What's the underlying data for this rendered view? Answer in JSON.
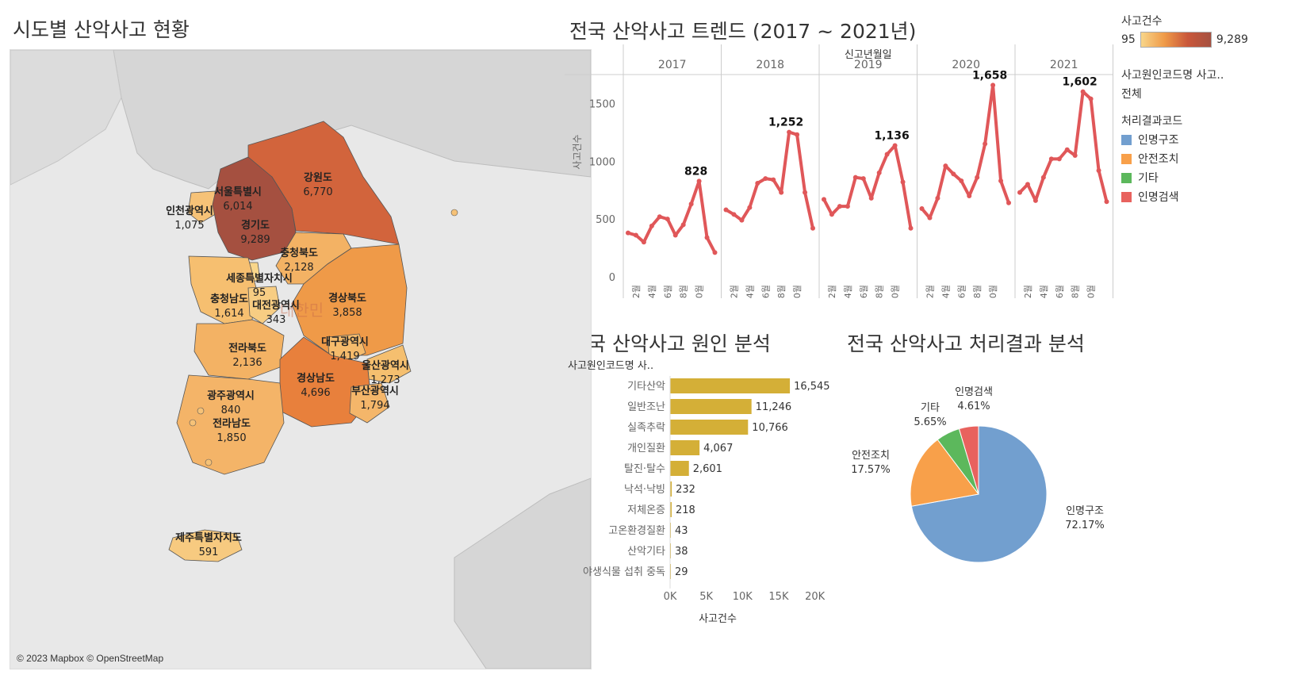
{
  "titles": {
    "map": "시도별 산악사고 현황",
    "trend": "전국 산악사고 트렌드 (2017 ~ 2021년)",
    "cause": "전국 산악사고 원인 분석",
    "result": "전국 산악사고 처리결과 분석"
  },
  "map": {
    "credit": "© 2023 Mapbox © OpenStreetMap",
    "watermark": "대한민",
    "regions": [
      {
        "name": "강원도",
        "value": "6,770",
        "color": "#d2643c"
      },
      {
        "name": "서울특별시",
        "value": "6,014",
        "color": "#b9593f"
      },
      {
        "name": "인천광역시",
        "value": "1,075",
        "color": "#f6c277"
      },
      {
        "name": "경기도",
        "value": "9,289",
        "color": "#a55040"
      },
      {
        "name": "충청북도",
        "value": "2,128",
        "color": "#f3b264"
      },
      {
        "name": "세종특별자치시",
        "value": "95",
        "color": "#f8d68a"
      },
      {
        "name": "충청남도",
        "value": "1,614",
        "color": "#f6bf70"
      },
      {
        "name": "대전광역시",
        "value": "343",
        "color": "#f7cd83"
      },
      {
        "name": "경상북도",
        "value": "3,858",
        "color": "#ef9a48"
      },
      {
        "name": "전라북도",
        "value": "2,136",
        "color": "#f3b264"
      },
      {
        "name": "대구광역시",
        "value": "1,419",
        "color": "#f5bb6c"
      },
      {
        "name": "울산광역시",
        "value": "1,273",
        "color": "#f5bf6f"
      },
      {
        "name": "경상남도",
        "value": "4,696",
        "color": "#e8803c"
      },
      {
        "name": "부산광역시",
        "value": "1,794",
        "color": "#f4b66a"
      },
      {
        "name": "광주광역시",
        "value": "840",
        "color": "#f6c77c"
      },
      {
        "name": "전라남도",
        "value": "1,850",
        "color": "#f4b468"
      },
      {
        "name": "제주특별자치도",
        "value": "591",
        "color": "#f7ca80"
      }
    ]
  },
  "legend": {
    "count_title": "사고건수",
    "count_min": "95",
    "count_max": "9,289",
    "cause_title": "사고원인코드명 사고..",
    "cause_value": "전체",
    "result_title": "처리결과코드",
    "result_items": [
      {
        "label": "인명구조",
        "color": "#729fcf"
      },
      {
        "label": "안전조치",
        "color": "#f8a04a"
      },
      {
        "label": "기타",
        "color": "#5cb85c"
      },
      {
        "label": "인명검색",
        "color": "#e8625e"
      }
    ]
  },
  "chart_data": [
    {
      "type": "line",
      "title": "전국 산악사고 트렌드 (2017 ~ 2021년)",
      "header_label": "신고년월일",
      "ylabel": "사고건수",
      "ylim": [
        0,
        1750
      ],
      "yticks": [
        0,
        500,
        1000,
        1500
      ],
      "x_tick_labels": [
        "2월",
        "4월",
        "6월",
        "8월",
        "10월"
      ],
      "color": "#e05759",
      "series": [
        {
          "name": "2017",
          "values": [
            380,
            360,
            300,
            440,
            520,
            500,
            360,
            450,
            630,
            828,
            340,
            210
          ],
          "peak_label": "828"
        },
        {
          "name": "2018",
          "values": [
            580,
            540,
            490,
            600,
            810,
            850,
            840,
            730,
            1252,
            1230,
            730,
            420
          ],
          "peak_label": "1,252"
        },
        {
          "name": "2019",
          "values": [
            670,
            540,
            610,
            610,
            860,
            850,
            680,
            900,
            1060,
            1136,
            820,
            420
          ],
          "peak_label": "1,136"
        },
        {
          "name": "2020",
          "values": [
            590,
            510,
            680,
            960,
            890,
            830,
            700,
            860,
            1150,
            1658,
            830,
            640
          ],
          "peak_label": "1,658"
        },
        {
          "name": "2021",
          "values": [
            730,
            800,
            660,
            860,
            1020,
            1020,
            1100,
            1050,
            1602,
            1540,
            920,
            650
          ],
          "peak_label": "1,602"
        }
      ]
    },
    {
      "type": "bar",
      "title": "전국 산악사고 원인 분석",
      "header_label": "사고원인코드명 사..",
      "xlabel": "사고건수",
      "xlim": [
        0,
        23000
      ],
      "xticks": [
        0,
        5000,
        10000,
        15000,
        20000
      ],
      "xtick_labels": [
        "0K",
        "5K",
        "10K",
        "15K",
        "20K"
      ],
      "color": "#d4af37",
      "categories": [
        "기타산악",
        "일반조난",
        "실족추락",
        "개인질환",
        "탈진·탈수",
        "낙석·낙빙",
        "저체온증",
        "고온환경질환",
        "산악기타",
        "야생식물 섭취 중독"
      ],
      "values": [
        16545,
        11246,
        10766,
        4067,
        2601,
        232,
        218,
        43,
        38,
        29
      ],
      "value_labels": [
        "16,545",
        "11,246",
        "10,766",
        "4,067",
        "2,601",
        "232",
        "218",
        "43",
        "38",
        "29"
      ]
    },
    {
      "type": "pie",
      "title": "전국 산악사고 처리결과 분석",
      "categories": [
        "인명구조",
        "안전조치",
        "기타",
        "인명검색"
      ],
      "values": [
        72.17,
        17.57,
        5.65,
        4.61
      ],
      "value_labels": [
        "72.17%",
        "17.57%",
        "5.65%",
        "4.61%"
      ],
      "colors": [
        "#729fcf",
        "#f8a04a",
        "#5cb85c",
        "#e8625e"
      ]
    }
  ]
}
